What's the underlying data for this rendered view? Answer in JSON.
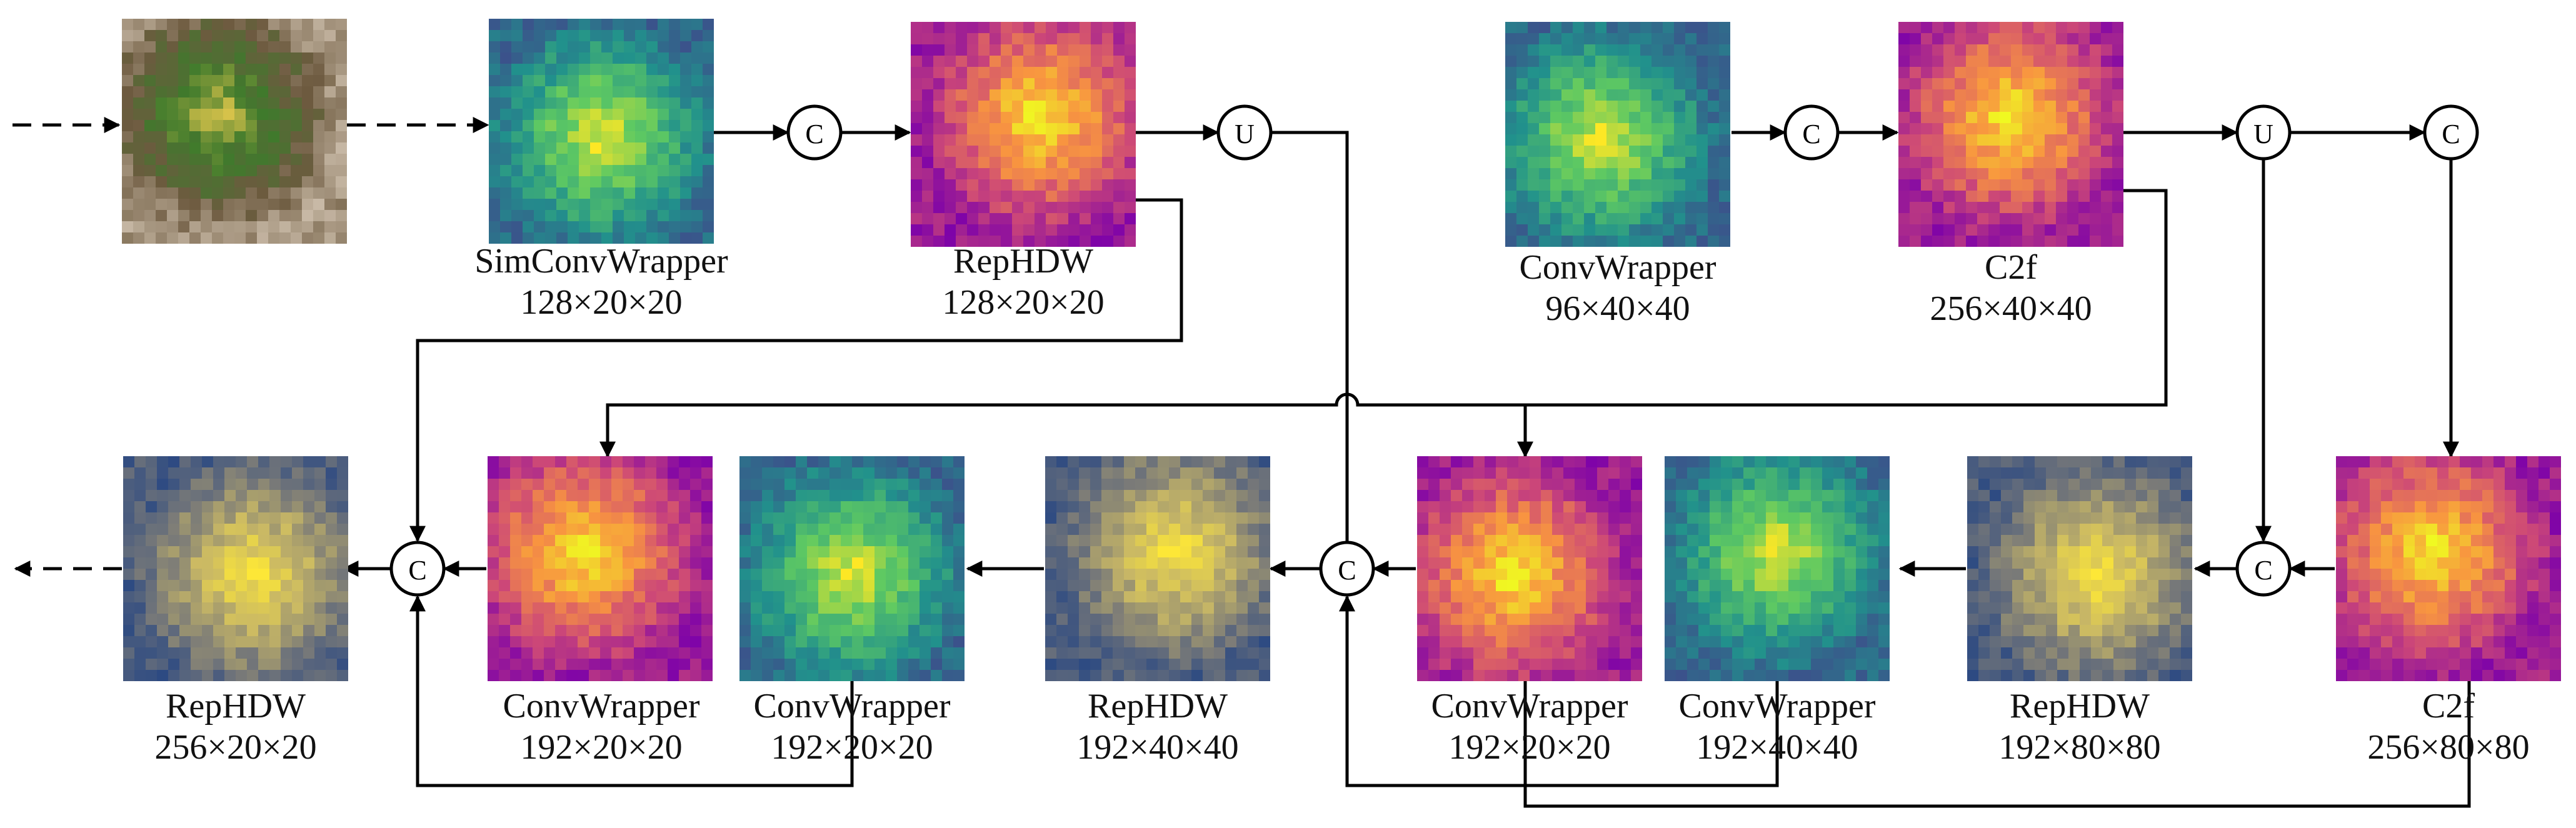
{
  "concat_symbol": "C",
  "upsample_symbol": "U",
  "colormaps": {
    "viridis": [
      "#3b528b",
      "#21918c",
      "#5ec962",
      "#fde725"
    ],
    "plasma": [
      "#7e03a8",
      "#cc4778",
      "#f89540",
      "#f0f921"
    ],
    "cividis": [
      "#2d4a82",
      "#7b7b78",
      "#c9b865",
      "#fde737"
    ],
    "leaf": [
      "#c8b9a6",
      "#6d5a3f",
      "#3f7a2c",
      "#d6c24a"
    ]
  },
  "top_row": [
    {
      "id": "input",
      "name": "",
      "dims": "",
      "cmap": "leaf"
    },
    {
      "id": "simconv",
      "name": "SimConvWrapper",
      "dims": "128×20×20",
      "cmap": "viridis"
    },
    {
      "id": "rephdw_top",
      "name": "RepHDW",
      "dims": "128×20×20",
      "cmap": "plasma"
    },
    {
      "id": "convwrapper_top",
      "name": "ConvWrapper",
      "dims": "96×40×40",
      "cmap": "viridis"
    },
    {
      "id": "c2f_top",
      "name": "C2f",
      "dims": "256×40×40",
      "cmap": "plasma"
    }
  ],
  "bottom_row": [
    {
      "id": "rephdw_out",
      "name": "RepHDW",
      "dims": "256×20×20",
      "cmap": "cividis"
    },
    {
      "id": "convwrapper_b1",
      "name": "ConvWrapper",
      "dims": "192×20×20",
      "cmap": "plasma"
    },
    {
      "id": "convwrapper_b2",
      "name": "ConvWrapper",
      "dims": "192×20×20",
      "cmap": "viridis"
    },
    {
      "id": "rephdw_b3",
      "name": "RepHDW",
      "dims": "192×40×40",
      "cmap": "cividis"
    },
    {
      "id": "convwrapper_b4",
      "name": "ConvWrapper",
      "dims": "192×20×20",
      "cmap": "plasma"
    },
    {
      "id": "convwrapper_b5",
      "name": "ConvWrapper",
      "dims": "192×40×40",
      "cmap": "viridis"
    },
    {
      "id": "rephdw_b6",
      "name": "RepHDW",
      "dims": "192×80×80",
      "cmap": "cividis"
    },
    {
      "id": "c2f_bottom",
      "name": "C2f",
      "dims": "256×80×80",
      "cmap": "plasma"
    }
  ]
}
